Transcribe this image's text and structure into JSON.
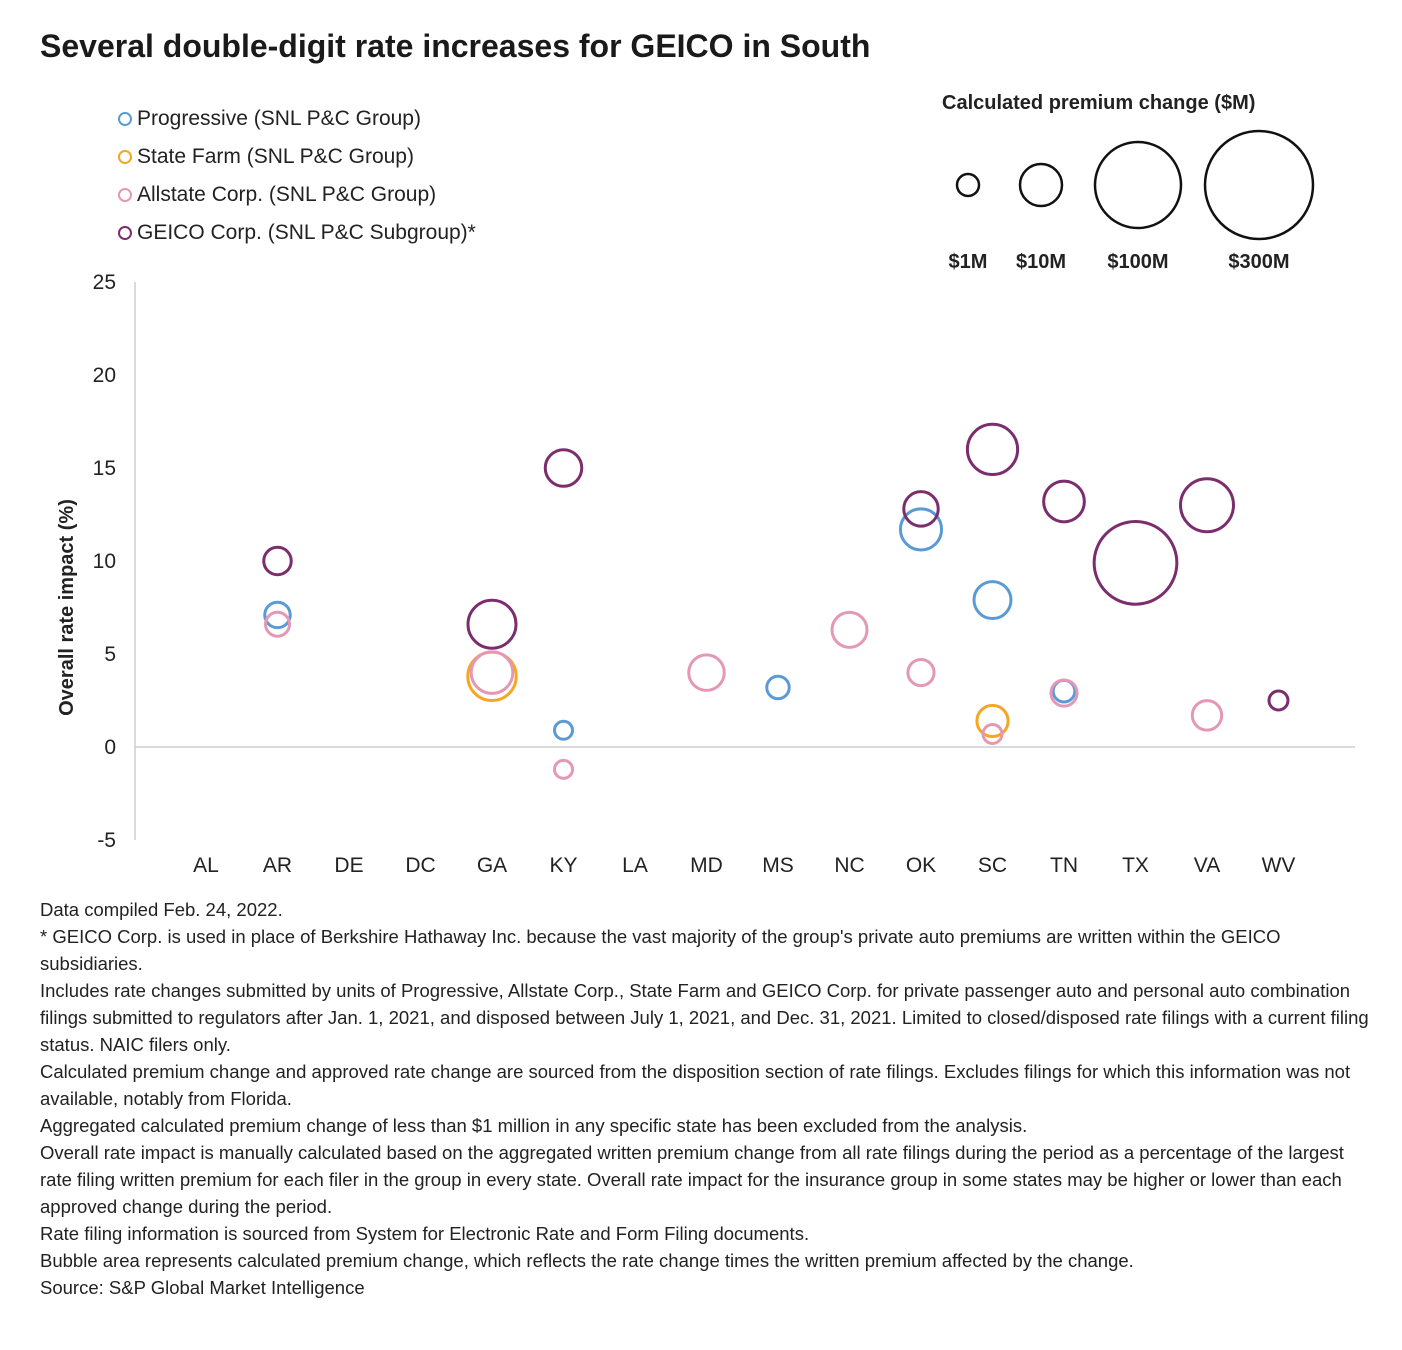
{
  "title": "Several double-digit rate increases for GEICO in South",
  "size_legend": {
    "title": "Calculated premium change ($M)",
    "items": [
      {
        "label": "$1M",
        "value": 1
      },
      {
        "label": "$10M",
        "value": 10
      },
      {
        "label": "$100M",
        "value": 100
      },
      {
        "label": "$300M",
        "value": 300
      }
    ]
  },
  "chart_data": {
    "type": "scatter",
    "subtype": "bubble",
    "title": "Several double-digit rate increases for GEICO in South",
    "xlabel": "",
    "ylabel": "Overall rate impact (%)",
    "categories": [
      "AL",
      "AR",
      "DE",
      "DC",
      "GA",
      "KY",
      "LA",
      "MD",
      "MS",
      "NC",
      "OK",
      "SC",
      "TN",
      "TX",
      "VA",
      "WV"
    ],
    "ylim": [
      -5,
      25
    ],
    "yticks": [
      -5,
      0,
      5,
      10,
      15,
      20,
      25
    ],
    "grid": false,
    "legend_position": "top-left",
    "size_unit": "Calculated premium change ($M)",
    "series": [
      {
        "name": "Progressive (SNL P&C Group)",
        "color": "#5b9bd5",
        "points": [
          {
            "x": "AR",
            "y": 7.1,
            "size": 18
          },
          {
            "x": "KY",
            "y": 0.9,
            "size": 8
          },
          {
            "x": "MS",
            "y": 3.2,
            "size": 14
          },
          {
            "x": "OK",
            "y": 11.7,
            "size": 47
          },
          {
            "x": "SC",
            "y": 7.9,
            "size": 38
          },
          {
            "x": "TN",
            "y": 3.0,
            "size": 13
          }
        ]
      },
      {
        "name": "State Farm (SNL P&C Group)",
        "color": "#f5a623",
        "points": [
          {
            "x": "GA",
            "y": 3.8,
            "size": 65
          },
          {
            "x": "SC",
            "y": 1.4,
            "size": 27
          }
        ]
      },
      {
        "name": "Allstate Corp. (SNL P&C Group)",
        "color": "#e598b6",
        "points": [
          {
            "x": "AR",
            "y": 6.6,
            "size": 16
          },
          {
            "x": "GA",
            "y": 4.0,
            "size": 48
          },
          {
            "x": "KY",
            "y": -1.2,
            "size": 8
          },
          {
            "x": "MD",
            "y": 4.0,
            "size": 35
          },
          {
            "x": "NC",
            "y": 6.3,
            "size": 34
          },
          {
            "x": "OK",
            "y": 4.0,
            "size": 19
          },
          {
            "x": "SC",
            "y": 0.7,
            "size": 10
          },
          {
            "x": "TN",
            "y": 2.9,
            "size": 19
          },
          {
            "x": "VA",
            "y": 1.7,
            "size": 24
          }
        ]
      },
      {
        "name": "GEICO Corp. (SNL P&C Subgroup)*",
        "color": "#7b2d6e",
        "points": [
          {
            "x": "AR",
            "y": 10.0,
            "size": 21
          },
          {
            "x": "GA",
            "y": 6.6,
            "size": 64
          },
          {
            "x": "KY",
            "y": 15.0,
            "size": 37
          },
          {
            "x": "OK",
            "y": 12.8,
            "size": 33
          },
          {
            "x": "SC",
            "y": 16.0,
            "size": 70
          },
          {
            "x": "TN",
            "y": 13.2,
            "size": 46
          },
          {
            "x": "TX",
            "y": 9.9,
            "size": 190
          },
          {
            "x": "VA",
            "y": 13.0,
            "size": 78
          },
          {
            "x": "WV",
            "y": 2.5,
            "size": 10
          }
        ]
      }
    ]
  },
  "notes": [
    "Data compiled Feb. 24, 2022.",
    "* GEICO Corp. is used in place of Berkshire Hathaway Inc. because the vast majority of the group's private auto premiums are written within the GEICO subsidiaries.",
    "Includes rate changes submitted by units of Progressive, Allstate Corp., State Farm and GEICO Corp. for private passenger auto and personal auto combination filings submitted to regulators after Jan. 1, 2021, and disposed between July 1, 2021, and Dec. 31, 2021. Limited to closed/disposed rate filings with a current filing status. NAIC filers only.",
    "Calculated premium change and approved rate change are sourced from the disposition section of rate filings. Excludes filings for which this information was not available, notably from Florida.",
    "Aggregated calculated premium change of less than $1 million in any specific state has been excluded from the analysis.",
    "Overall rate impact is manually calculated based on the aggregated written premium change from all rate filings during the period as a percentage of the largest rate filing written premium for each filer in the group in every state. Overall rate impact for the insurance group in some states may be higher or lower than each approved change during the period.",
    "Rate filing information is sourced from System for Electronic Rate and Form Filing documents.",
    "Bubble area represents calculated premium change, which reflects the rate change times the written premium affected by the change.",
    "Source: S&P Global Market Intelligence"
  ]
}
